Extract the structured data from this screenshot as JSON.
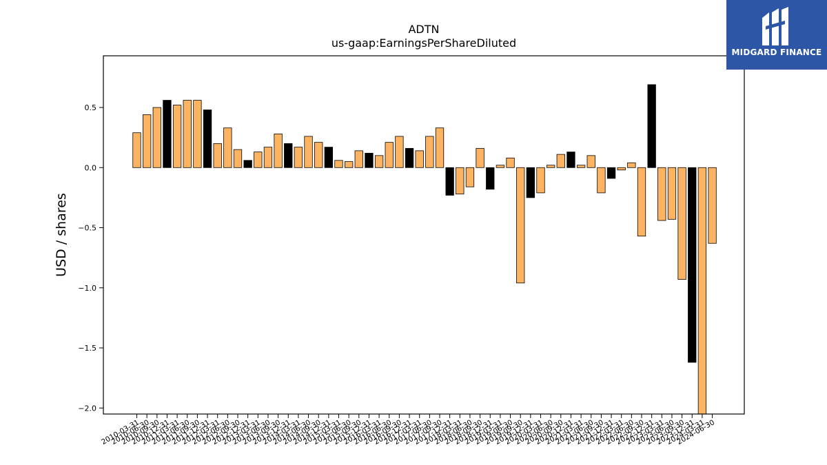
{
  "brand": {
    "name": "MIDGARD FINANCE",
    "logo_icon": "midgard-logo-icon",
    "background": "#2d56a6"
  },
  "colors": {
    "bar_default": "#fdb462",
    "bar_highlight": "#000000",
    "bar_stroke": "#000000"
  },
  "chart_data": {
    "type": "bar",
    "title": "ADTN",
    "subtitle": "us-gaap:EarningsPerShareDiluted",
    "xlabel": "",
    "ylabel": "USD / shares",
    "ylim": [
      -2.05,
      0.93
    ],
    "yticks": [
      0.5,
      0.0,
      -0.5,
      -1.0,
      -1.5,
      -2.0
    ],
    "ytick_labels": [
      "0.5",
      "0.0",
      "−0.5",
      "−1.0",
      "−1.5",
      "−2.0"
    ],
    "grid": false,
    "categories": [
      "2010-03-31",
      "2010-06-30",
      "2010-09-30",
      "2010-12-31",
      "2011-03-31",
      "2011-06-30",
      "2011-09-30",
      "2011-12-31",
      "2012-03-31",
      "2012-06-30",
      "2012-09-30",
      "2012-12-31",
      "2013-03-31",
      "2013-06-30",
      "2013-09-30",
      "2013-12-31",
      "2014-03-31",
      "2014-06-30",
      "2014-09-30",
      "2014-12-31",
      "2015-03-31",
      "2015-06-30",
      "2015-09-30",
      "2015-12-31",
      "2016-03-31",
      "2016-06-30",
      "2016-09-30",
      "2016-12-31",
      "2017-03-31",
      "2017-06-30",
      "2017-09-30",
      "2017-12-31",
      "2018-03-31",
      "2018-06-30",
      "2018-09-30",
      "2018-12-31",
      "2019-03-31",
      "2019-06-30",
      "2019-09-30",
      "2019-12-31",
      "2020-03-31",
      "2020-06-30",
      "2020-09-30",
      "2020-12-31",
      "2021-03-31",
      "2021-06-30",
      "2021-09-30",
      "2021-12-31",
      "2022-03-31",
      "2022-06-30",
      "2022-09-30",
      "2022-12-31",
      "2023-03-31",
      "2023-06-30",
      "2023-09-30",
      "2023-12-31",
      "2024-03-31",
      "2024-06-30"
    ],
    "values": [
      0.29,
      0.44,
      0.5,
      0.56,
      0.52,
      0.56,
      0.56,
      0.48,
      0.2,
      0.33,
      0.15,
      0.06,
      0.13,
      0.17,
      0.28,
      0.2,
      0.17,
      0.26,
      0.21,
      0.17,
      0.06,
      0.05,
      0.14,
      0.12,
      0.1,
      0.21,
      0.26,
      0.16,
      0.14,
      0.26,
      0.33,
      -0.23,
      -0.22,
      -0.16,
      0.16,
      -0.18,
      0.02,
      0.08,
      -0.96,
      -0.25,
      -0.21,
      0.02,
      0.11,
      0.13,
      0.02,
      0.1,
      -0.21,
      -0.09,
      -0.02,
      0.04,
      -0.57,
      0.69,
      -0.44,
      -0.43,
      -0.93,
      -1.62,
      -2.05,
      -0.63
    ],
    "highlight": [
      false,
      false,
      false,
      true,
      false,
      false,
      false,
      true,
      false,
      false,
      false,
      true,
      false,
      false,
      false,
      true,
      false,
      false,
      false,
      true,
      false,
      false,
      false,
      true,
      false,
      false,
      false,
      true,
      false,
      false,
      false,
      true,
      false,
      false,
      false,
      true,
      false,
      false,
      false,
      true,
      false,
      false,
      false,
      true,
      false,
      false,
      false,
      true,
      false,
      false,
      false,
      true,
      false,
      false,
      false,
      true,
      false,
      false
    ]
  }
}
